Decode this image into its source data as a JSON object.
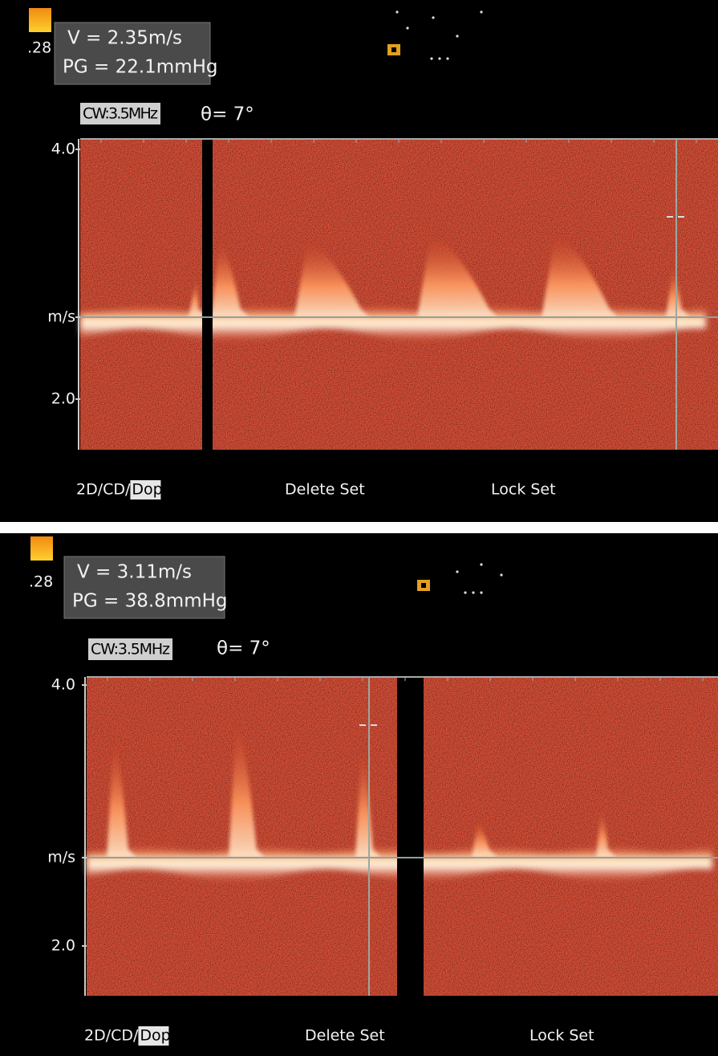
{
  "panels": [
    {
      "scale": ".28",
      "velocity": "V = 2.35m/s",
      "gradient": "PG = 22.1mmHg",
      "mode": "CW:3.5MHz",
      "angle": "θ= 7°",
      "axis": [
        "4.0",
        "m/s",
        "2.0"
      ],
      "menu": [
        "2D/CD/",
        "Dop",
        "Delete Set",
        "Lock Set"
      ]
    },
    {
      "scale": ".28",
      "velocity": "V = 3.11m/s",
      "gradient": "PG = 38.8mmHg",
      "mode": "CW:3.5MHz",
      "angle": "θ= 7°",
      "axis": [
        "4.0",
        "m/s",
        "2.0"
      ],
      "menu": [
        "2D/CD/",
        "Dop",
        "Delete Set",
        "Lock Set"
      ]
    }
  ]
}
